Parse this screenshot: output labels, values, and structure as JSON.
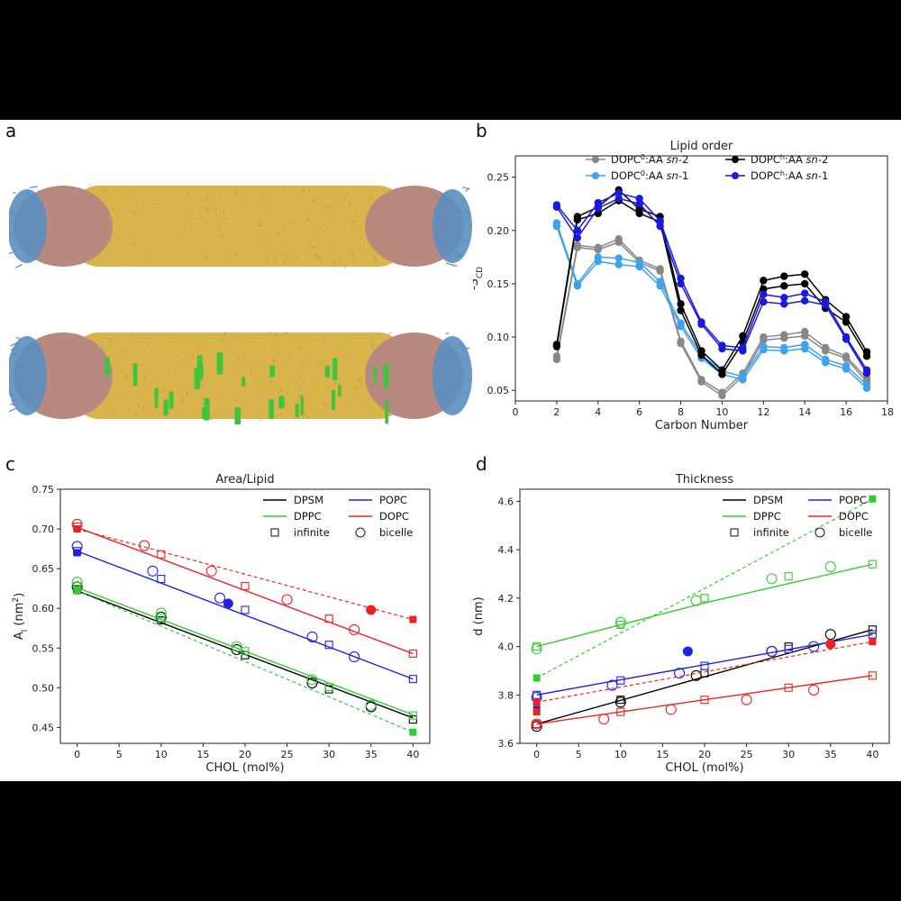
{
  "panel_labels": [
    "a",
    "b",
    "c",
    "d"
  ],
  "molecular_renders": {
    "top": {
      "name": "bicelle-without-cholesterol"
    },
    "bottom": {
      "name": "bicelle-with-cholesterol"
    },
    "colors": {
      "body": "#d9b44a",
      "body_dark": "#b8913a",
      "rim_pink": "#b88a7f",
      "rim_blue": "#5b8ec0",
      "chol": "#3ec43e"
    }
  },
  "chart_data": [
    {
      "panel": "b",
      "type": "line",
      "title": "Lipid order",
      "xlabel": "Carbon Number",
      "ylabel": "-S",
      "ylabel_sub": "CD",
      "xlim": [
        0,
        18
      ],
      "ylim": [
        0.04,
        0.27
      ],
      "xticks": [
        "0",
        "2",
        "4",
        "6",
        "8",
        "10",
        "12",
        "14",
        "16",
        "18"
      ],
      "yticks": [
        "0.05",
        "0.10",
        "0.15",
        "0.20",
        "0.25"
      ],
      "x": [
        2,
        3,
        4,
        5,
        6,
        7,
        8,
        9,
        10,
        11,
        12,
        13,
        14,
        15,
        16,
        17
      ],
      "legend": [
        {
          "pre": "DOPC",
          "sup": "0",
          "post": ":AA ",
          "it": "sn",
          "end": "-2",
          "color": "#888888"
        },
        {
          "pre": "DOPC",
          "sup": "h",
          "post": ":AA ",
          "it": "sn",
          "end": "-2",
          "color": "#000000"
        },
        {
          "pre": "DOPC",
          "sup": "0",
          "post": ":AA ",
          "it": "sn",
          "end": "-1",
          "color": "#3fa2ee"
        },
        {
          "pre": "DOPC",
          "sup": "h",
          "post": ":AA ",
          "it": "sn",
          "end": "-1",
          "color": "#1a1adc"
        }
      ],
      "series": [
        {
          "name": "DOPC0:AA sn-2 (a)",
          "color": "#888888",
          "values": [
            0.079,
            0.184,
            0.182,
            0.189,
            0.17,
            0.162,
            0.094,
            0.058,
            0.045,
            0.063,
            0.097,
            0.099,
            0.101,
            0.087,
            0.08,
            0.058
          ]
        },
        {
          "name": "DOPC0:AA sn-2 (b)",
          "color": "#888888",
          "values": [
            0.082,
            0.186,
            0.184,
            0.192,
            0.172,
            0.164,
            0.096,
            0.06,
            0.048,
            0.066,
            0.1,
            0.102,
            0.105,
            0.09,
            0.082,
            0.061
          ]
        },
        {
          "name": "DOPC0:AA sn-1 (a)",
          "color": "#3fa2ee",
          "values": [
            0.204,
            0.148,
            0.171,
            0.168,
            0.166,
            0.148,
            0.11,
            0.08,
            0.065,
            0.06,
            0.088,
            0.087,
            0.089,
            0.076,
            0.07,
            0.052
          ]
        },
        {
          "name": "DOPC0:AA sn-1 (b)",
          "color": "#3fa2ee",
          "values": [
            0.207,
            0.15,
            0.175,
            0.174,
            0.17,
            0.152,
            0.113,
            0.083,
            0.068,
            0.063,
            0.091,
            0.09,
            0.093,
            0.079,
            0.073,
            0.055
          ]
        },
        {
          "name": "DOPCh:AA sn-2 (a)",
          "color": "#000000",
          "values": [
            0.091,
            0.21,
            0.216,
            0.228,
            0.216,
            0.208,
            0.125,
            0.083,
            0.065,
            0.095,
            0.145,
            0.148,
            0.15,
            0.127,
            0.114,
            0.082
          ]
        },
        {
          "name": "DOPCh:AA sn-2 (b)",
          "color": "#000000",
          "values": [
            0.093,
            0.213,
            0.222,
            0.238,
            0.22,
            0.213,
            0.131,
            0.087,
            0.069,
            0.101,
            0.153,
            0.157,
            0.159,
            0.135,
            0.119,
            0.086
          ]
        },
        {
          "name": "DOPCh:AA sn-1 (a)",
          "color": "#1a1adc",
          "values": [
            0.222,
            0.193,
            0.221,
            0.23,
            0.225,
            0.204,
            0.15,
            0.112,
            0.089,
            0.087,
            0.133,
            0.131,
            0.134,
            0.13,
            0.098,
            0.066
          ]
        },
        {
          "name": "DOPCh:AA sn-1 (b)",
          "color": "#1a1adc",
          "values": [
            0.224,
            0.2,
            0.226,
            0.235,
            0.23,
            0.209,
            0.155,
            0.114,
            0.092,
            0.09,
            0.14,
            0.137,
            0.141,
            0.133,
            0.1,
            0.069
          ]
        }
      ]
    },
    {
      "panel": "c",
      "type": "scatter",
      "title": "Area/Lipid",
      "xlabel": "CHOL (mol%)",
      "ylabel": "A",
      "ylabel_sub": "l",
      "ylabel_post": " (nm",
      "ylabel_sup": "2",
      "ylabel_end": ")",
      "xlim": [
        -2,
        42
      ],
      "ylim": [
        0.43,
        0.75
      ],
      "xticks": [
        0,
        5,
        10,
        15,
        20,
        25,
        30,
        35,
        40
      ],
      "yticks": [
        "0.45",
        "0.50",
        "0.55",
        "0.60",
        "0.65",
        "0.70",
        "0.75"
      ],
      "legend": {
        "dpsm": "DPSM",
        "popc": "POPC",
        "dppc": "DPPC",
        "dopc": "DOPC",
        "infinite": "infinite",
        "bicelle": "bicelle"
      },
      "colors": {
        "DPSM": "#000000",
        "POPC": "#2222dd",
        "DPPC": "#33cc33",
        "DOPC": "#ee2222"
      },
      "series": [
        {
          "lipid": "DPSM",
          "fit": [
            [
              0,
              0.622
            ],
            [
              40,
              0.462
            ]
          ],
          "infinite": [
            [
              0,
              0.624
            ],
            [
              10,
              0.585
            ],
            [
              20,
              0.541
            ],
            [
              30,
              0.498
            ],
            [
              40,
              0.46
            ]
          ],
          "bicelle": [
            [
              0,
              0.627
            ],
            [
              10,
              0.589
            ],
            [
              19,
              0.548
            ],
            [
              28,
              0.506
            ],
            [
              35,
              0.476
            ]
          ]
        },
        {
          "lipid": "DPPC",
          "fit": [
            [
              0,
              0.626
            ],
            [
              40,
              0.466
            ]
          ],
          "infinite": [
            [
              0,
              0.628
            ],
            [
              10,
              0.588
            ],
            [
              20,
              0.546
            ],
            [
              30,
              0.501
            ],
            [
              40,
              0.465
            ]
          ],
          "bicelle": [
            [
              0,
              0.633
            ],
            [
              10,
              0.594
            ],
            [
              19,
              0.552
            ],
            [
              28,
              0.51
            ],
            [
              35,
              0.478
            ]
          ],
          "dashed": [
            [
              0,
              0.622
            ],
            [
              40,
              0.444
            ]
          ],
          "filled": [
            [
              0,
              0.622
            ],
            [
              40,
              0.444
            ]
          ]
        },
        {
          "lipid": "POPC",
          "fit": [
            [
              0,
              0.672
            ],
            [
              40,
              0.511
            ]
          ],
          "infinite": [
            [
              0,
              0.672
            ],
            [
              10,
              0.637
            ],
            [
              20,
              0.598
            ],
            [
              30,
              0.554
            ],
            [
              40,
              0.511
            ]
          ],
          "bicelle": [
            [
              0,
              0.678
            ],
            [
              9,
              0.647
            ],
            [
              17,
              0.613
            ],
            [
              28,
              0.564
            ],
            [
              33,
              0.539
            ]
          ],
          "filled": [
            [
              0,
              0.67
            ],
            [
              18,
              0.606
            ]
          ]
        },
        {
          "lipid": "DOPC",
          "fit": [
            [
              0,
              0.702
            ],
            [
              40,
              0.543
            ]
          ],
          "infinite": [
            [
              0,
              0.703
            ],
            [
              10,
              0.668
            ],
            [
              20,
              0.628
            ],
            [
              30,
              0.587
            ],
            [
              40,
              0.543
            ]
          ],
          "bicelle": [
            [
              0,
              0.706
            ],
            [
              8,
              0.679
            ],
            [
              16,
              0.647
            ],
            [
              25,
              0.611
            ],
            [
              33,
              0.573
            ]
          ],
          "dashed": [
            [
              0,
              0.7
            ],
            [
              40,
              0.586
            ]
          ],
          "filled": [
            [
              0,
              0.7
            ],
            [
              35,
              0.598
            ],
            [
              40,
              0.586
            ]
          ]
        }
      ]
    },
    {
      "panel": "d",
      "type": "scatter",
      "title": "Thickness",
      "xlabel": "CHOL (mol%)",
      "ylabel": "d (nm)",
      "xlim": [
        -2,
        42
      ],
      "ylim": [
        3.6,
        4.65
      ],
      "xticks": [
        0,
        5,
        10,
        15,
        20,
        25,
        30,
        35,
        40
      ],
      "yticks": [
        "3.6",
        "3.8",
        "4.0",
        "4.2",
        "4.4",
        "4.6"
      ],
      "legend": {
        "dpsm": "DPSM",
        "popc": "POPC",
        "dppc": "DPPC",
        "dopc": "DOPC",
        "infinite": "infinite",
        "bicelle": "bicelle"
      },
      "colors": {
        "DPSM": "#000000",
        "POPC": "#2222dd",
        "DPPC": "#33cc33",
        "DOPC": "#ee2222"
      },
      "series": [
        {
          "lipid": "DPPC",
          "fit": [
            [
              0,
              4.0
            ],
            [
              20,
              4.18
            ],
            [
              40,
              4.34
            ]
          ],
          "infinite": [
            [
              0,
              4.0
            ],
            [
              10,
              4.09
            ],
            [
              20,
              4.2
            ],
            [
              30,
              4.29
            ],
            [
              40,
              4.34
            ]
          ],
          "bicelle": [
            [
              0,
              3.99
            ],
            [
              10,
              4.1
            ],
            [
              19,
              4.19
            ],
            [
              28,
              4.28
            ],
            [
              35,
              4.33
            ]
          ],
          "dashed": [
            [
              0,
              3.87
            ],
            [
              40,
              4.61
            ]
          ],
          "filled": [
            [
              0,
              3.87
            ],
            [
              40,
              4.61
            ]
          ]
        },
        {
          "lipid": "DPSM",
          "fit": [
            [
              0,
              3.68
            ],
            [
              40,
              4.07
            ]
          ],
          "infinite": [
            [
              0,
              3.68
            ],
            [
              10,
              3.78
            ],
            [
              20,
              3.89
            ],
            [
              30,
              4.0
            ],
            [
              40,
              4.07
            ]
          ],
          "bicelle": [
            [
              0,
              3.67
            ],
            [
              10,
              3.77
            ],
            [
              19,
              3.88
            ],
            [
              28,
              3.98
            ],
            [
              35,
              4.05
            ]
          ]
        },
        {
          "lipid": "POPC",
          "fit": [
            [
              0,
              3.8
            ],
            [
              40,
              4.05
            ]
          ],
          "infinite": [
            [
              0,
              3.8
            ],
            [
              10,
              3.86
            ],
            [
              20,
              3.92
            ],
            [
              30,
              3.99
            ],
            [
              40,
              4.05
            ]
          ],
          "bicelle": [
            [
              0,
              3.79
            ],
            [
              9,
              3.84
            ],
            [
              17,
              3.89
            ],
            [
              28,
              3.98
            ],
            [
              33,
              4.0
            ]
          ],
          "filled": [
            [
              0,
              3.74
            ],
            [
              18,
              3.98
            ]
          ]
        },
        {
          "lipid": "DOPC",
          "fit": [
            [
              0,
              3.68
            ],
            [
              40,
              3.88
            ]
          ],
          "infinite": [
            [
              0,
              3.68
            ],
            [
              10,
              3.73
            ],
            [
              20,
              3.78
            ],
            [
              30,
              3.83
            ],
            [
              40,
              3.88
            ]
          ],
          "bicelle": [
            [
              0,
              3.68
            ],
            [
              8,
              3.7
            ],
            [
              16,
              3.74
            ],
            [
              25,
              3.78
            ],
            [
              33,
              3.82
            ]
          ],
          "dashed": [
            [
              0,
              3.77
            ],
            [
              40,
              4.02
            ]
          ],
          "filled": [
            [
              0,
              3.77
            ],
            [
              0,
              3.73
            ],
            [
              35,
              4.01
            ],
            [
              40,
              4.02
            ]
          ]
        }
      ]
    }
  ]
}
